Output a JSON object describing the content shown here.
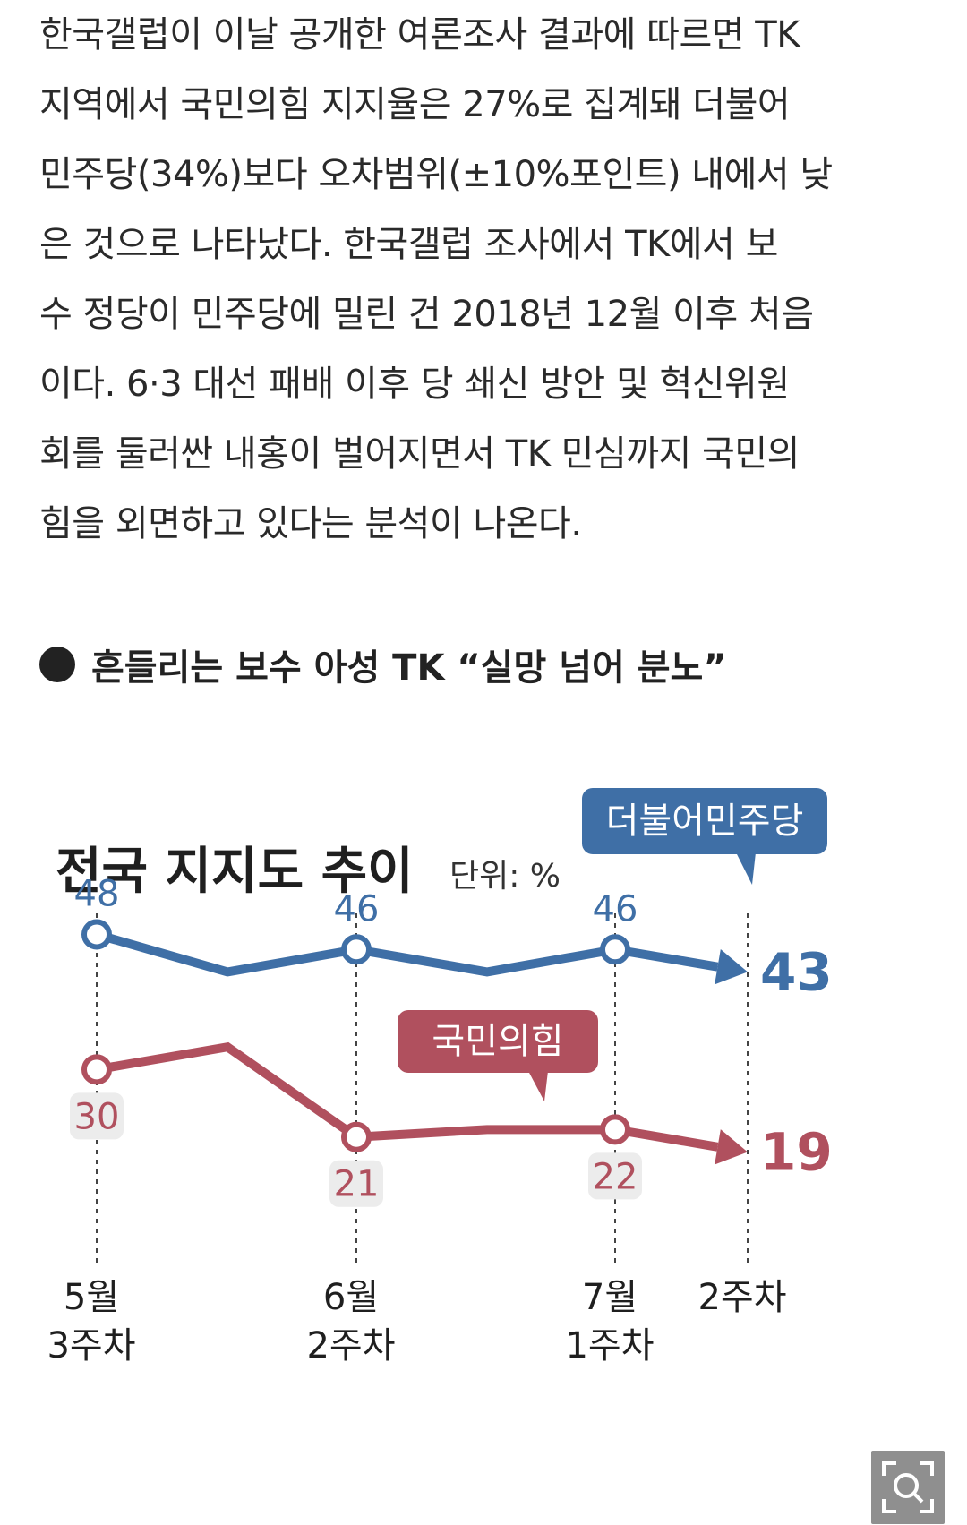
{
  "article": {
    "lines": [
      "한국갤럽이 이날 공개한 여론조사 결과에 따르면 TK",
      "지역에서 국민의힘 지지율은 27%로 집계돼 더불어",
      "민주당(34%)보다 오차범위(±10%포인트) 내에서 낮",
      "은 것으로 나타났다. 한국갤럽 조사에서 TK에서 보",
      "수 정당이 민주당에 밀린 건 2018년 12월 이후 처음",
      "이다. 6·3 대선 패배 이후 당 쇄신 방안 및 혁신위원",
      "회를 둘러싼 내홍이 벌어지면서 TK 민심까지 국민의",
      "힘을 외면하고 있다는 분석이 나온다."
    ]
  },
  "subheading": "흔들리는 보수 아성 TK “실망 넘어 분노”",
  "chart_data": {
    "type": "line",
    "title": "전국 지지도 추이",
    "unit_label": "단위: %",
    "x": [
      "5월 3주차",
      "",
      "6월 2주차",
      "",
      "7월 1주차",
      "2주차"
    ],
    "tick_labels": [
      {
        "line1": "5월",
        "line2": "3주차"
      },
      {
        "line1": "6월",
        "line2": "2주차"
      },
      {
        "line1": "7월",
        "line2": "1주차"
      },
      {
        "line1": "2주차",
        "line2": ""
      }
    ],
    "series": [
      {
        "name": "더불어민주당",
        "color": "#3f6fa6",
        "values": [
          48,
          43,
          46,
          43,
          46,
          43
        ],
        "labels": [
          "48",
          "",
          "46",
          "",
          "46",
          "43"
        ]
      },
      {
        "name": "국민의힘",
        "color": "#b0505e",
        "values": [
          30,
          33,
          21,
          22,
          22,
          19
        ],
        "labels": [
          "30",
          "",
          "21",
          "",
          "22",
          "19"
        ]
      }
    ],
    "ylim": [
      15,
      52
    ],
    "grid": false,
    "legend": "inline-callouts"
  },
  "zoom_icon": "zoom-icon"
}
